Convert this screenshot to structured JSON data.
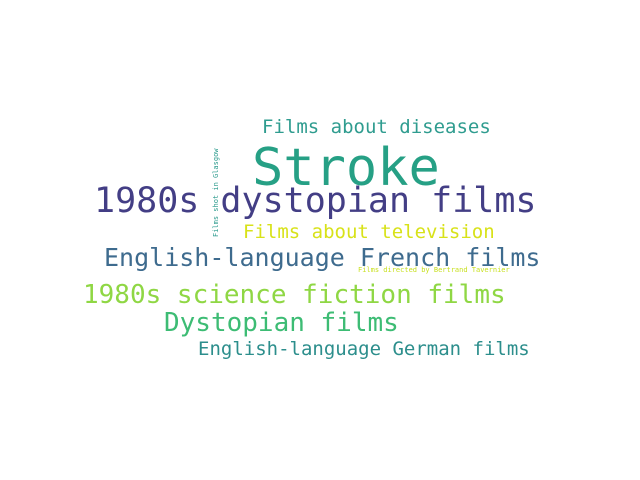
{
  "words": [
    {
      "text": "Stroke",
      "color": "#26a085"
    },
    {
      "text": "1980s dystopian films",
      "color": "#433e85"
    },
    {
      "text": "Films about diseases",
      "color": "#2f9c8f"
    },
    {
      "text": "Films about television",
      "color": "#d8e219"
    },
    {
      "text": "English-language French films",
      "color": "#3e6b8e"
    },
    {
      "text": "Films directed by Bertrand Tavernier",
      "color": "#c8e020"
    },
    {
      "text": "1980s science fiction films",
      "color": "#8fd744"
    },
    {
      "text": "Dystopian films",
      "color": "#3dbc74"
    },
    {
      "text": "English-language German films",
      "color": "#2c8e8c"
    },
    {
      "text": "Films shot in Glasgow",
      "color": "#2a9a8c"
    }
  ]
}
